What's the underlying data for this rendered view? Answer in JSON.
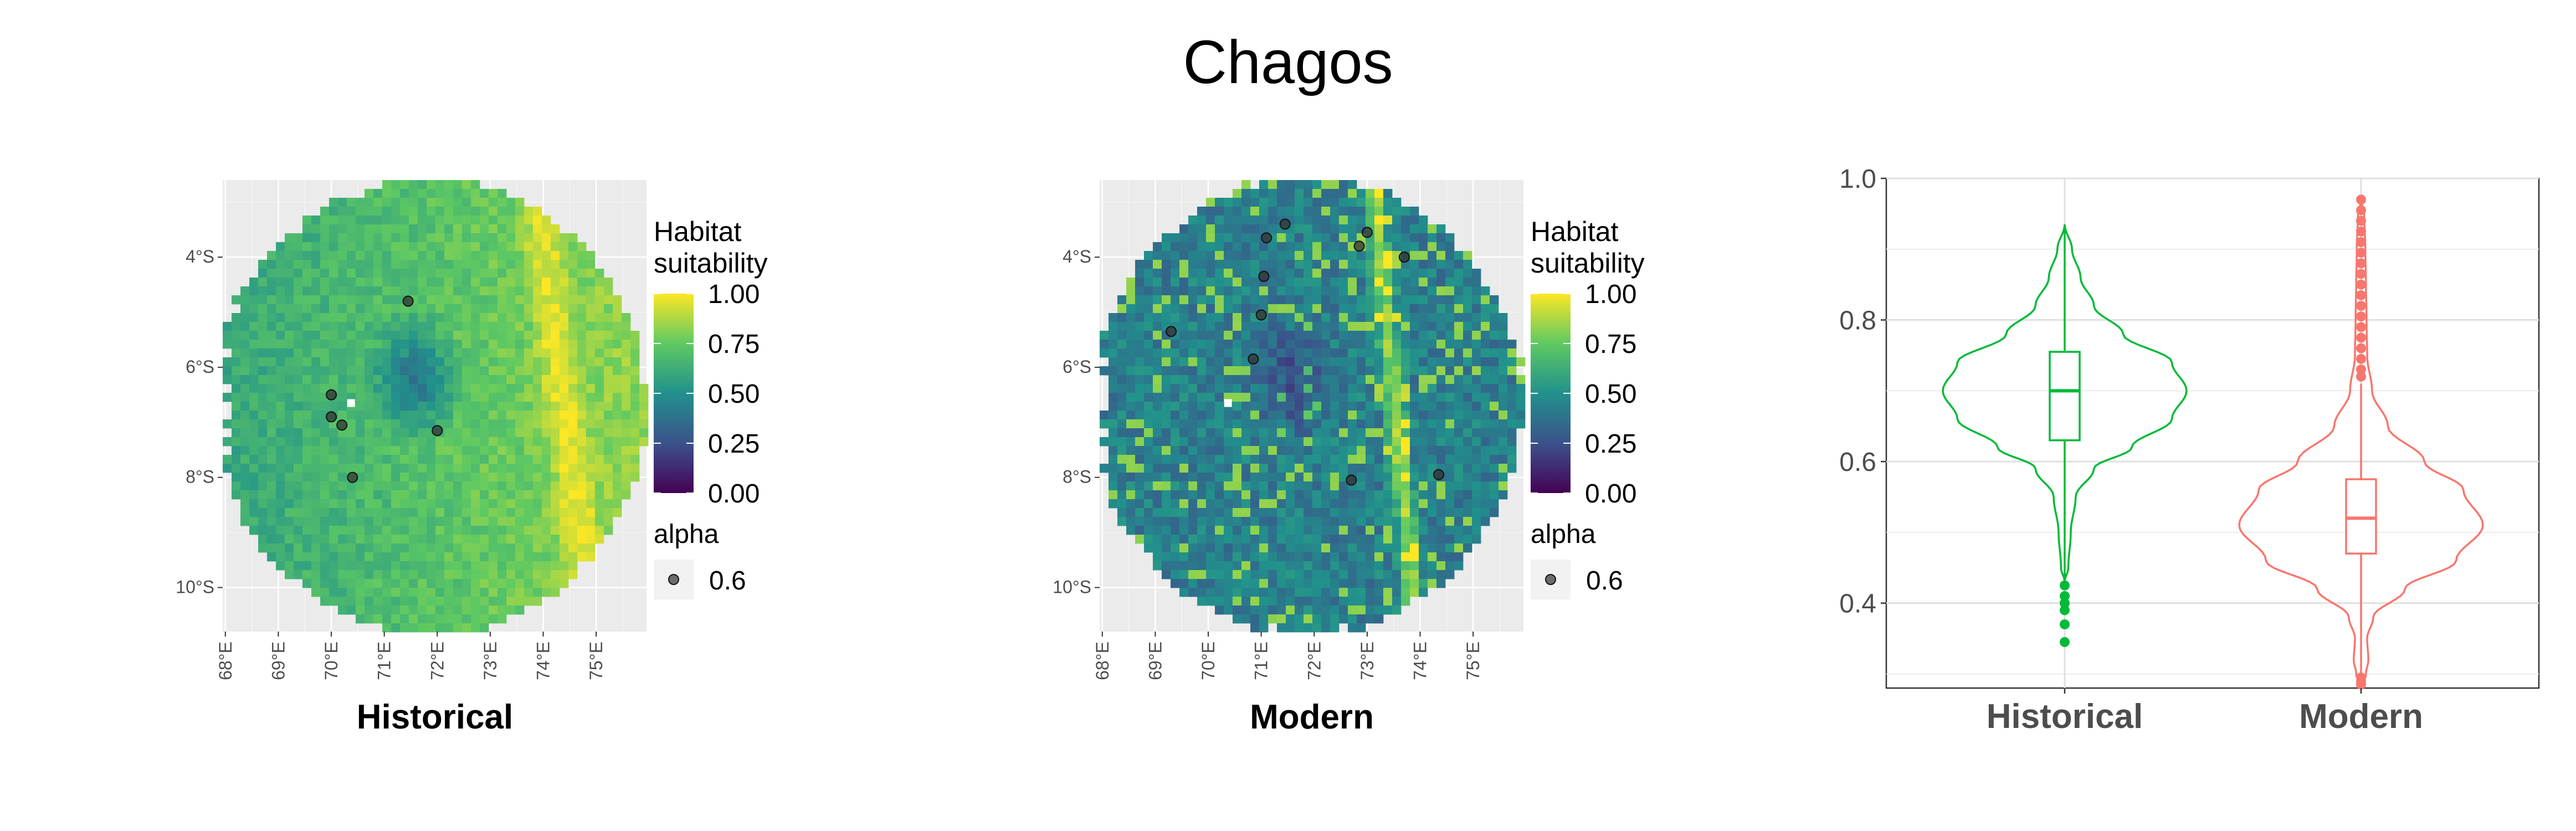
{
  "title": "Chagos",
  "palette": {
    "viridis": [
      "#440154",
      "#3b528b",
      "#21918c",
      "#5ec962",
      "#fde725"
    ],
    "panel_bg": "#ebebeb",
    "grid": "#ffffff",
    "historical": "#00ba38",
    "modern": "#f8766d"
  },
  "maps": [
    {
      "label": "Historical",
      "variant": "historical",
      "points": [
        [
          71.45,
          -4.8
        ],
        [
          70.0,
          -6.5
        ],
        [
          70.0,
          -6.9
        ],
        [
          70.2,
          -7.05
        ],
        [
          70.4,
          -8.0
        ],
        [
          72.0,
          -7.15
        ]
      ]
    },
    {
      "label": "Modern",
      "variant": "modern",
      "points": [
        [
          71.45,
          -3.4
        ],
        [
          71.1,
          -3.65
        ],
        [
          73.0,
          -3.55
        ],
        [
          72.85,
          -3.8
        ],
        [
          73.7,
          -4.0
        ],
        [
          71.05,
          -4.35
        ],
        [
          71.0,
          -5.05
        ],
        [
          69.3,
          -5.35
        ],
        [
          70.85,
          -5.85
        ],
        [
          72.7,
          -8.05
        ],
        [
          74.35,
          -7.95
        ]
      ]
    }
  ],
  "legend": {
    "title_line1": "Habitat",
    "title_line2": "suitability",
    "ticks": [
      "1.00",
      "0.75",
      "0.50",
      "0.25",
      "0.00"
    ],
    "alpha_title": "alpha",
    "alpha_value": "0.6"
  },
  "map_axes": {
    "x_ticks": [
      "68°E",
      "69°E",
      "70°E",
      "71°E",
      "72°E",
      "73°E",
      "74°E",
      "75°E"
    ],
    "y_ticks": [
      "4°S",
      "6°S",
      "8°S",
      "10°S"
    ]
  },
  "chart_data": {
    "type": "violin",
    "title": "Chagos",
    "categories": [
      "Historical",
      "Modern"
    ],
    "ylim": [
      0.28,
      1.0
    ],
    "y_ticks": [
      "0.4",
      "0.6",
      "0.8",
      "1.0"
    ],
    "series": [
      {
        "name": "Historical",
        "min": 0.43,
        "q1": 0.63,
        "median": 0.7,
        "q3": 0.755,
        "max": 0.935,
        "outliers": [
          0.425,
          0.41,
          0.4,
          0.39,
          0.37,
          0.345
        ],
        "density": [
          [
            0.43,
            0.0
          ],
          [
            0.45,
            0.03
          ],
          [
            0.5,
            0.05
          ],
          [
            0.55,
            0.09
          ],
          [
            0.59,
            0.24
          ],
          [
            0.62,
            0.55
          ],
          [
            0.66,
            0.88
          ],
          [
            0.7,
            1.0
          ],
          [
            0.74,
            0.88
          ],
          [
            0.78,
            0.48
          ],
          [
            0.82,
            0.24
          ],
          [
            0.86,
            0.13
          ],
          [
            0.9,
            0.06
          ],
          [
            0.935,
            0.0
          ]
        ]
      },
      {
        "name": "Modern",
        "min": 0.3,
        "q1": 0.47,
        "median": 0.52,
        "q3": 0.575,
        "max": 0.71,
        "outliers": [
          0.72,
          0.73,
          0.745,
          0.76,
          0.775,
          0.79,
          0.805,
          0.82,
          0.835,
          0.85,
          0.865,
          0.88,
          0.895,
          0.91,
          0.925,
          0.94,
          0.955,
          0.97,
          0.29,
          0.285,
          0.295
        ],
        "density": [
          [
            0.28,
            0.0
          ],
          [
            0.3,
            0.04
          ],
          [
            0.32,
            0.06
          ],
          [
            0.35,
            0.05
          ],
          [
            0.38,
            0.1
          ],
          [
            0.42,
            0.36
          ],
          [
            0.46,
            0.78
          ],
          [
            0.51,
            1.0
          ],
          [
            0.56,
            0.84
          ],
          [
            0.6,
            0.52
          ],
          [
            0.65,
            0.22
          ],
          [
            0.7,
            0.09
          ],
          [
            0.75,
            0.05
          ],
          [
            0.8,
            0.045
          ],
          [
            0.85,
            0.04
          ],
          [
            0.9,
            0.035
          ],
          [
            0.95,
            0.025
          ],
          [
            0.97,
            0.0
          ]
        ]
      }
    ]
  }
}
